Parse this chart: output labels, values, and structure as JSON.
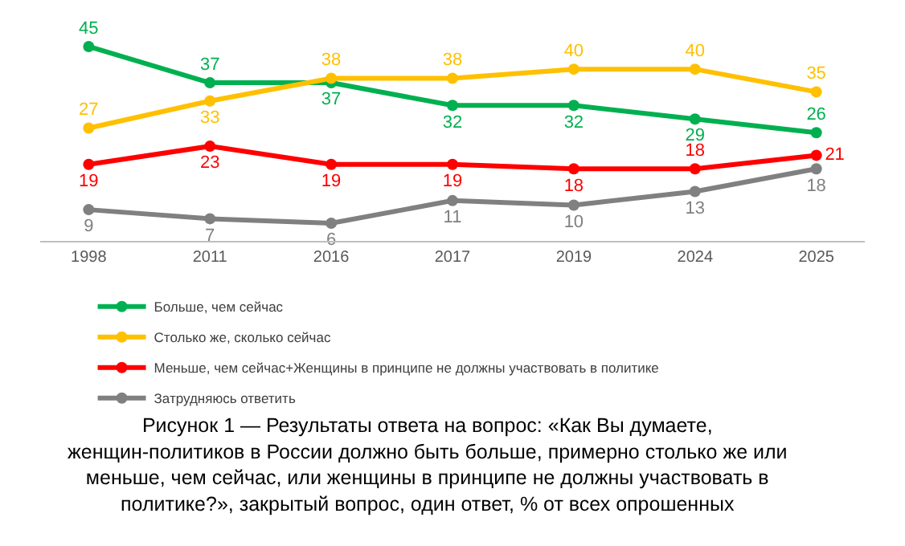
{
  "chart_data": {
    "type": "line",
    "categories": [
      "1998",
      "2011",
      "2016",
      "2017",
      "2019",
      "2024",
      "2025"
    ],
    "series": [
      {
        "name": "Больше, чем сейчас",
        "color": "#00b050",
        "values": [
          45,
          37,
          37,
          32,
          32,
          29,
          26
        ]
      },
      {
        "name": "Столько же, сколько сейчас",
        "color": "#ffc000",
        "values": [
          27,
          33,
          38,
          38,
          40,
          40,
          35
        ]
      },
      {
        "name": "Меньше, чем сейчас+Женщины в принципе не должны участвовать в политике",
        "color": "#ff0000",
        "values": [
          19,
          23,
          19,
          19,
          18,
          18,
          21
        ]
      },
      {
        "name": "Затрудняюсь ответить",
        "color": "#808080",
        "values": [
          9,
          7,
          6,
          11,
          10,
          13,
          18
        ]
      }
    ],
    "data_labels": true,
    "marker": "circle",
    "line_style": "solid",
    "grid": false,
    "legend": "bottom",
    "annotations": [
      "Рисунок 1 — Результаты ответа на вопрос: «Как Вы думаете, женщин-политиков в России должно быть больше, примерно столько же или меньше, чем сейчас, или женщины в принципе не должны участвовать в политике?», закрытый вопрос, один ответ, % от всех опрошенных"
    ]
  }
}
